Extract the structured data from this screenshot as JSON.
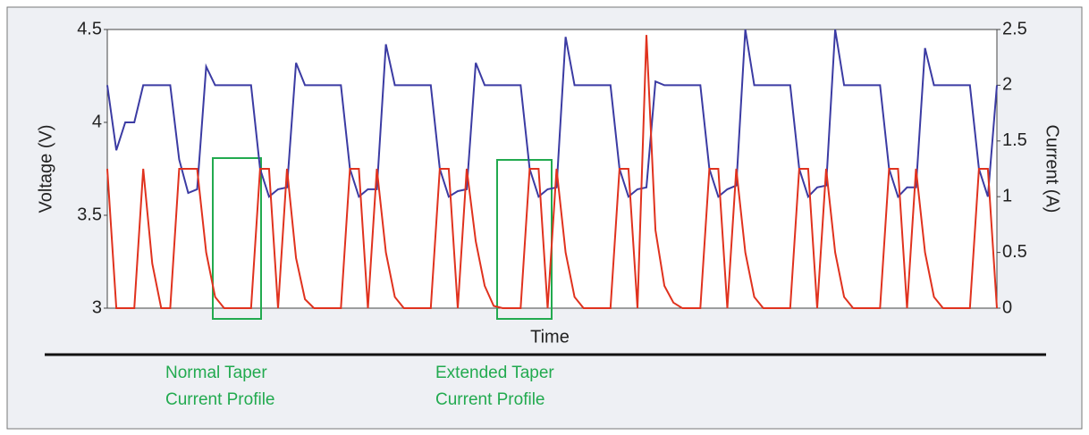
{
  "chart_data": {
    "type": "line",
    "x_label": "Time",
    "y_label": "Voltage (V)",
    "y2_label": "Current (A)",
    "ylim": [
      3,
      4.5
    ],
    "yticks": [
      3,
      3.5,
      4,
      4.5
    ],
    "y2lim": [
      0,
      2.5
    ],
    "y2ticks": [
      0,
      0.5,
      1,
      1.5,
      2,
      2.5
    ],
    "series": [
      {
        "name": "Voltage",
        "color": "#3b3ba3",
        "values": [
          4.2,
          3.85,
          4.0,
          4.0,
          4.2,
          4.2,
          4.2,
          4.2,
          3.8,
          3.62,
          3.64,
          4.3,
          4.2,
          4.2,
          4.2,
          4.2,
          4.2,
          3.75,
          3.6,
          3.64,
          3.65,
          4.32,
          4.2,
          4.2,
          4.2,
          4.2,
          4.2,
          3.75,
          3.6,
          3.64,
          3.64,
          4.42,
          4.2,
          4.2,
          4.2,
          4.2,
          4.2,
          3.75,
          3.6,
          3.63,
          3.64,
          4.32,
          4.2,
          4.2,
          4.2,
          4.2,
          4.2,
          3.75,
          3.6,
          3.64,
          3.65,
          4.46,
          4.2,
          4.2,
          4.2,
          4.2,
          4.2,
          3.75,
          3.6,
          3.64,
          3.65,
          4.22,
          4.2,
          4.2,
          4.2,
          4.2,
          4.2,
          3.75,
          3.6,
          3.64,
          3.66,
          4.5,
          4.2,
          4.2,
          4.2,
          4.2,
          4.2,
          3.75,
          3.6,
          3.65,
          3.66,
          4.5,
          4.2,
          4.2,
          4.2,
          4.2,
          4.2,
          3.75,
          3.6,
          3.65,
          3.65,
          4.4,
          4.2,
          4.2,
          4.2,
          4.2,
          4.2,
          3.75,
          3.6,
          4.2
        ]
      },
      {
        "name": "Current",
        "color": "#e0321e",
        "axis": "y2",
        "values": [
          1.25,
          0,
          0,
          0,
          1.25,
          0.4,
          0,
          0,
          1.25,
          1.25,
          1.25,
          0.5,
          0.1,
          0,
          0,
          0,
          0,
          1.25,
          1.25,
          0,
          1.25,
          0.45,
          0.08,
          0,
          0,
          0,
          0,
          1.25,
          1.25,
          0,
          1.25,
          0.5,
          0.1,
          0,
          0,
          0,
          0,
          1.25,
          1.25,
          0,
          1.25,
          0.6,
          0.2,
          0.02,
          0,
          0,
          0,
          1.25,
          1.25,
          0,
          1.25,
          0.5,
          0.1,
          0,
          0,
          0,
          0,
          1.25,
          1.25,
          0,
          2.45,
          0.7,
          0.2,
          0.05,
          0,
          0,
          0,
          1.25,
          1.25,
          0,
          1.25,
          0.5,
          0.1,
          0,
          0,
          0,
          0,
          1.25,
          1.25,
          0,
          1.25,
          0.5,
          0.1,
          0,
          0,
          0,
          0,
          1.25,
          1.25,
          0,
          1.25,
          0.5,
          0.1,
          0,
          0,
          0,
          0,
          1.25,
          1.25,
          0
        ]
      }
    ],
    "annotations": [
      [
        "Normal Taper",
        "Current Profile"
      ],
      [
        "Extended Taper",
        "Current Profile"
      ]
    ]
  }
}
